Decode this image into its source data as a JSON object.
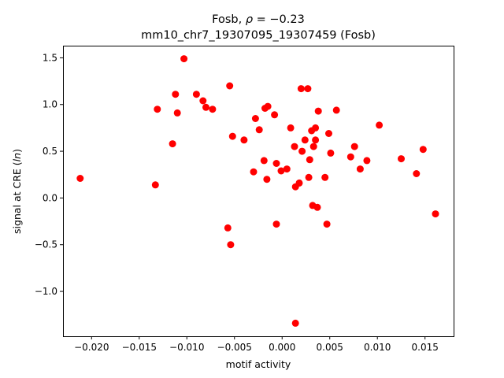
{
  "chart_data": {
    "type": "scatter",
    "title_line1": "Fosb, ρ = −0.23",
    "title_line2": "mm10_chr7_19307095_19307459 (Fosb)",
    "xlabel": "motif activity",
    "ylabel": "signal at CRE (ln)",
    "xlim": [
      -0.023,
      0.018
    ],
    "ylim": [
      -1.48,
      1.63
    ],
    "xticks": [
      -0.02,
      -0.015,
      -0.01,
      -0.005,
      0.0,
      0.005,
      0.01,
      0.015
    ],
    "xtick_labels": [
      "−0.020",
      "−0.015",
      "−0.010",
      "−0.005",
      "0.000",
      "0.005",
      "0.010",
      "0.015"
    ],
    "yticks": [
      -1.0,
      -0.5,
      0.0,
      0.5,
      1.0,
      1.5
    ],
    "ytick_labels": [
      "−1.0",
      "−0.5",
      "0.0",
      "0.5",
      "1.0",
      "1.5"
    ],
    "grid": false,
    "marker_color": "#ff0000",
    "points": [
      {
        "x": -0.0212,
        "y": 0.21
      },
      {
        "x": -0.0133,
        "y": 0.14
      },
      {
        "x": -0.0131,
        "y": 0.95
      },
      {
        "x": -0.0115,
        "y": 0.58
      },
      {
        "x": -0.0112,
        "y": 1.11
      },
      {
        "x": -0.011,
        "y": 0.91
      },
      {
        "x": -0.0103,
        "y": 1.49
      },
      {
        "x": -0.009,
        "y": 1.11
      },
      {
        "x": -0.0083,
        "y": 1.04
      },
      {
        "x": -0.008,
        "y": 0.97
      },
      {
        "x": -0.0073,
        "y": 0.95
      },
      {
        "x": -0.0057,
        "y": -0.32
      },
      {
        "x": -0.0055,
        "y": 1.2
      },
      {
        "x": -0.0054,
        "y": -0.5
      },
      {
        "x": -0.0052,
        "y": 0.66
      },
      {
        "x": -0.004,
        "y": 0.62
      },
      {
        "x": -0.003,
        "y": 0.28
      },
      {
        "x": -0.0028,
        "y": 0.85
      },
      {
        "x": -0.0024,
        "y": 0.73
      },
      {
        "x": -0.0019,
        "y": 0.4
      },
      {
        "x": -0.0018,
        "y": 0.96
      },
      {
        "x": -0.0016,
        "y": 0.2
      },
      {
        "x": -0.0015,
        "y": 0.98
      },
      {
        "x": -0.0008,
        "y": 0.89
      },
      {
        "x": -0.0006,
        "y": 0.37
      },
      {
        "x": -0.0006,
        "y": -0.28
      },
      {
        "x": -0.0001,
        "y": 0.29
      },
      {
        "x": 0.0005,
        "y": 0.31
      },
      {
        "x": 0.0009,
        "y": 0.75
      },
      {
        "x": 0.0013,
        "y": 0.55
      },
      {
        "x": 0.0014,
        "y": 0.12
      },
      {
        "x": 0.0014,
        "y": -1.34
      },
      {
        "x": 0.0018,
        "y": 0.16
      },
      {
        "x": 0.002,
        "y": 1.17
      },
      {
        "x": 0.0021,
        "y": 0.5
      },
      {
        "x": 0.0024,
        "y": 0.62
      },
      {
        "x": 0.0027,
        "y": 1.17
      },
      {
        "x": 0.0028,
        "y": 0.22
      },
      {
        "x": 0.0029,
        "y": 0.41
      },
      {
        "x": 0.0031,
        "y": 0.72
      },
      {
        "x": 0.0032,
        "y": -0.08
      },
      {
        "x": 0.0033,
        "y": 0.55
      },
      {
        "x": 0.0035,
        "y": 0.75
      },
      {
        "x": 0.0035,
        "y": 0.62
      },
      {
        "x": 0.0037,
        "y": -0.1
      },
      {
        "x": 0.0038,
        "y": 0.93
      },
      {
        "x": 0.0045,
        "y": 0.22
      },
      {
        "x": 0.0047,
        "y": -0.28
      },
      {
        "x": 0.0049,
        "y": 0.69
      },
      {
        "x": 0.0051,
        "y": 0.48
      },
      {
        "x": 0.0057,
        "y": 0.94
      },
      {
        "x": 0.0072,
        "y": 0.44
      },
      {
        "x": 0.0076,
        "y": 0.55
      },
      {
        "x": 0.0082,
        "y": 0.31
      },
      {
        "x": 0.0089,
        "y": 0.4
      },
      {
        "x": 0.0102,
        "y": 0.78
      },
      {
        "x": 0.0125,
        "y": 0.42
      },
      {
        "x": 0.0141,
        "y": 0.26
      },
      {
        "x": 0.0148,
        "y": 0.52
      },
      {
        "x": 0.0161,
        "y": -0.17
      }
    ]
  }
}
